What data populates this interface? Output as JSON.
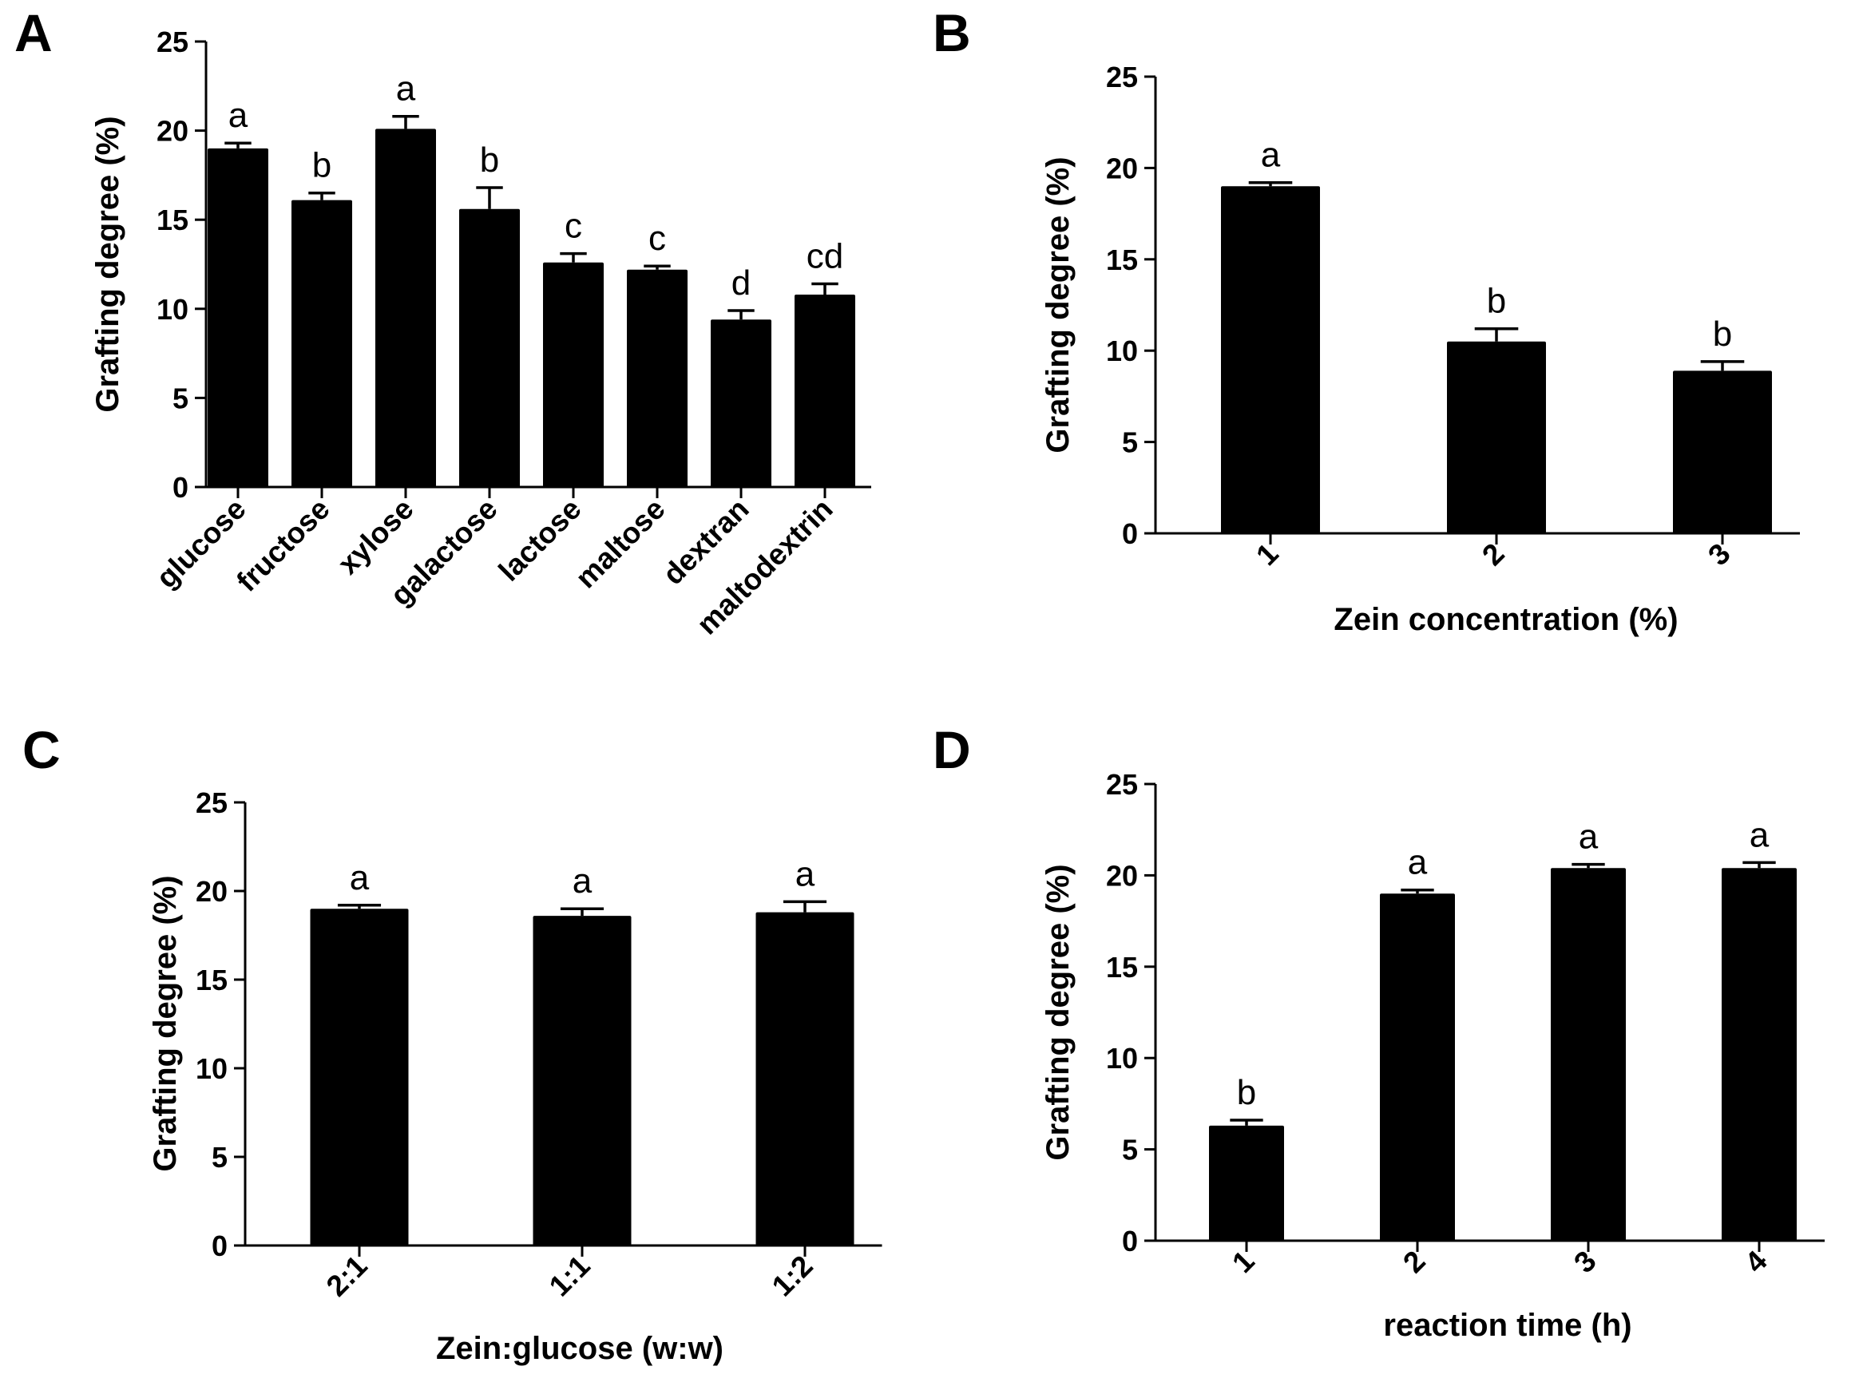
{
  "colors": {
    "bar": "#000000",
    "axis": "#000000",
    "background": "#ffffff"
  },
  "chart_data": [
    {
      "panel": "A",
      "type": "bar",
      "title": "",
      "xlabel": "",
      "ylabel": "Grafting degree (%)",
      "ylim": [
        0,
        25
      ],
      "yticks": [
        "0",
        "5",
        "10",
        "15",
        "20",
        "25"
      ],
      "categories": [
        "glucose",
        "fructose",
        "xylose",
        "galactose",
        "lactose",
        "maltose",
        "dextran",
        "maltodextrin"
      ],
      "values": [
        19.0,
        16.1,
        20.1,
        15.6,
        12.6,
        12.2,
        9.4,
        10.8
      ],
      "errors": [
        0.3,
        0.4,
        0.7,
        1.2,
        0.5,
        0.2,
        0.5,
        0.6
      ],
      "significance": [
        "a",
        "b",
        "a",
        "b",
        "c",
        "c",
        "d",
        "cd"
      ]
    },
    {
      "panel": "B",
      "type": "bar",
      "title": "",
      "xlabel": "Zein concentration (%)",
      "ylabel": "Grafting degree (%)",
      "ylim": [
        0,
        25
      ],
      "yticks": [
        "0",
        "5",
        "10",
        "15",
        "20",
        "25"
      ],
      "categories": [
        "1",
        "2",
        "3"
      ],
      "values": [
        19.0,
        10.5,
        8.9
      ],
      "errors": [
        0.2,
        0.7,
        0.5
      ],
      "significance": [
        "a",
        "b",
        "b"
      ]
    },
    {
      "panel": "C",
      "type": "bar",
      "title": "",
      "xlabel": "Zein:glucose (w:w)",
      "ylabel": "Grafting degree (%)",
      "ylim": [
        0,
        25
      ],
      "yticks": [
        "0",
        "5",
        "10",
        "15",
        "20",
        "25"
      ],
      "categories": [
        "2:1",
        "1:1",
        "1:2"
      ],
      "values": [
        19.0,
        18.6,
        18.8
      ],
      "errors": [
        0.2,
        0.4,
        0.6
      ],
      "significance": [
        "a",
        "a",
        "a"
      ]
    },
    {
      "panel": "D",
      "type": "bar",
      "title": "",
      "xlabel": "reaction time (h)",
      "ylabel": "Grafting degree (%)",
      "ylim": [
        0,
        25
      ],
      "yticks": [
        "0",
        "5",
        "10",
        "15",
        "20",
        "25"
      ],
      "categories": [
        "1",
        "2",
        "3",
        "4"
      ],
      "values": [
        6.3,
        19.0,
        20.4,
        20.4
      ],
      "errors": [
        0.3,
        0.2,
        0.2,
        0.3
      ],
      "significance": [
        "b",
        "a",
        "a",
        "a"
      ]
    }
  ]
}
